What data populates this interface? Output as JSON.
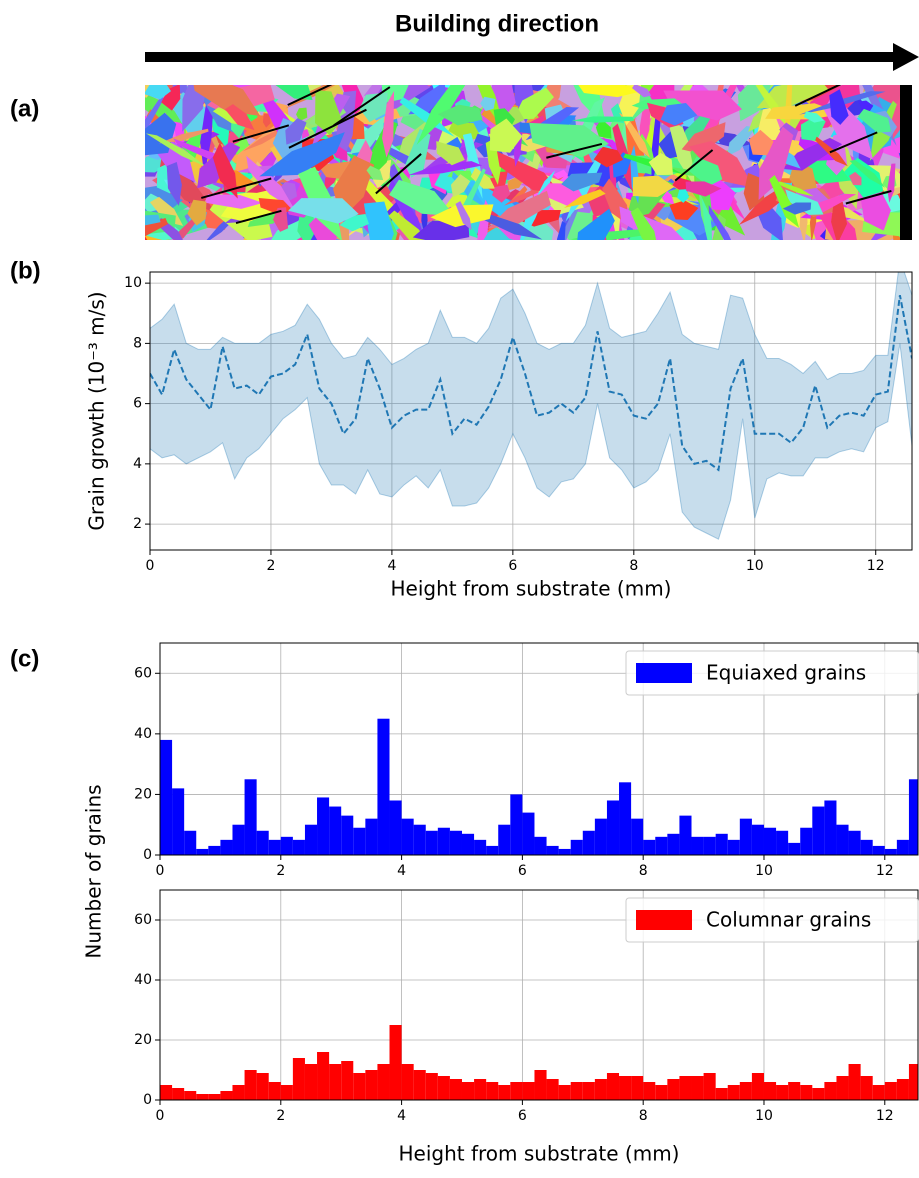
{
  "figure": {
    "arrow_label": "Building direction",
    "panel_labels": [
      "(a)",
      "(b)",
      "(c)"
    ]
  },
  "chart_data": [
    {
      "type": "line",
      "xlabel": "Height from substrate (mm)",
      "ylabel": "Grain growth (10⁻³ m/s)",
      "x": [
        0,
        0.2,
        0.4,
        0.6,
        0.8,
        1.0,
        1.2,
        1.4,
        1.6,
        1.8,
        2.0,
        2.2,
        2.4,
        2.6,
        2.8,
        3.0,
        3.2,
        3.4,
        3.6,
        3.8,
        4.0,
        4.2,
        4.4,
        4.6,
        4.8,
        5.0,
        5.2,
        5.4,
        5.6,
        5.8,
        6.0,
        6.2,
        6.4,
        6.6,
        6.8,
        7.0,
        7.2,
        7.4,
        7.6,
        7.8,
        8.0,
        8.2,
        8.4,
        8.6,
        8.8,
        9.0,
        9.2,
        9.4,
        9.6,
        9.8,
        10.0,
        10.2,
        10.4,
        10.6,
        10.8,
        11.0,
        11.2,
        11.4,
        11.6,
        11.8,
        12.0,
        12.2,
        12.4,
        12.6
      ],
      "series": [
        {
          "color": "#1f77b4",
          "dashed": true,
          "values": [
            7.0,
            6.3,
            7.8,
            6.8,
            6.3,
            5.8,
            7.9,
            6.5,
            6.6,
            6.3,
            6.9,
            7.0,
            7.3,
            8.3,
            6.5,
            6.0,
            5.0,
            5.5,
            7.5,
            6.5,
            5.2,
            5.6,
            5.8,
            5.8,
            6.8,
            5.0,
            5.5,
            5.3,
            5.9,
            6.8,
            8.2,
            7.0,
            5.6,
            5.7,
            6.0,
            5.7,
            6.2,
            8.4,
            6.4,
            6.3,
            5.6,
            5.5,
            6.0,
            7.5,
            4.6,
            4.0,
            4.1,
            3.8,
            6.5,
            7.5,
            5.0,
            5.0,
            5.0,
            4.7,
            5.2,
            6.6,
            5.2,
            5.6,
            5.7,
            5.6,
            6.3,
            6.4,
            9.6,
            7.5
          ]
        }
      ],
      "band": {
        "color": "#1f77b4",
        "opacity": 0.25,
        "upper": [
          8.5,
          8.8,
          9.3,
          8.0,
          7.8,
          7.8,
          8.2,
          8.0,
          8.0,
          8.0,
          8.3,
          8.4,
          8.6,
          9.3,
          8.8,
          8.0,
          7.5,
          7.6,
          8.2,
          7.8,
          7.3,
          7.5,
          7.8,
          8.0,
          9.1,
          8.2,
          8.2,
          8.0,
          8.5,
          9.5,
          9.8,
          9.0,
          8.0,
          7.8,
          8.0,
          8.0,
          8.6,
          10.0,
          8.5,
          8.2,
          8.3,
          8.4,
          9.0,
          9.7,
          8.3,
          8.0,
          7.9,
          7.8,
          9.6,
          9.5,
          8.3,
          7.5,
          7.5,
          7.3,
          7.0,
          7.4,
          6.8,
          7.0,
          7.0,
          7.1,
          7.6,
          7.6,
          10.8,
          9.6
        ],
        "lower": [
          4.5,
          4.2,
          4.3,
          4.0,
          4.2,
          4.4,
          4.7,
          3.5,
          4.2,
          4.5,
          5.0,
          5.5,
          5.8,
          6.2,
          4.0,
          3.3,
          3.3,
          3.0,
          3.8,
          3.0,
          2.9,
          3.3,
          3.6,
          3.2,
          3.8,
          2.6,
          2.6,
          2.7,
          3.2,
          4.0,
          5.0,
          4.2,
          3.2,
          2.9,
          3.4,
          3.5,
          4.0,
          6.0,
          4.2,
          3.8,
          3.2,
          3.4,
          3.8,
          5.0,
          2.4,
          1.9,
          1.7,
          1.5,
          2.8,
          5.5,
          2.2,
          3.5,
          3.7,
          3.6,
          3.6,
          4.2,
          4.2,
          4.4,
          4.5,
          4.4,
          5.2,
          5.4,
          8.0,
          4.6
        ]
      },
      "xlim": [
        0,
        12.6
      ],
      "xticks": [
        0,
        2,
        4,
        6,
        8,
        10,
        12
      ],
      "ylim": [
        1.14,
        10.37
      ],
      "yticks": [
        2,
        4,
        6,
        8,
        10
      ],
      "grid": true
    },
    {
      "type": "histogram",
      "ylabel": "Number of grains",
      "bins": [
        0,
        0.2,
        0.4,
        0.6,
        0.8,
        1.0,
        1.2,
        1.4,
        1.6,
        1.8,
        2.0,
        2.2,
        2.4,
        2.6,
        2.8,
        3.0,
        3.2,
        3.4,
        3.6,
        3.8,
        4.0,
        4.2,
        4.4,
        4.6,
        4.8,
        5.0,
        5.2,
        5.4,
        5.6,
        5.8,
        6.0,
        6.2,
        6.4,
        6.6,
        6.8,
        7.0,
        7.2,
        7.4,
        7.6,
        7.8,
        8.0,
        8.2,
        8.4,
        8.6,
        8.8,
        9.0,
        9.2,
        9.4,
        9.6,
        9.8,
        10.0,
        10.2,
        10.4,
        10.6,
        10.8,
        11.0,
        11.2,
        11.4,
        11.6,
        11.8,
        12.0,
        12.2,
        12.4,
        12.6
      ],
      "series": [
        {
          "name": "Equiaxed grains",
          "color": "#0000ff",
          "values": [
            38,
            22,
            8,
            2,
            3,
            5,
            10,
            25,
            8,
            5,
            6,
            5,
            10,
            19,
            16,
            13,
            9,
            12,
            45,
            18,
            12,
            10,
            8,
            9,
            8,
            7,
            5,
            3,
            10,
            20,
            14,
            6,
            3,
            2,
            5,
            8,
            12,
            18,
            24,
            12,
            5,
            6,
            7,
            13,
            6,
            6,
            7,
            5,
            12,
            10,
            9,
            8,
            4,
            9,
            16,
            18,
            10,
            8,
            5,
            3,
            2,
            5,
            25
          ]
        }
      ],
      "xlim": [
        0,
        12.55
      ],
      "xticks": [
        0,
        2,
        4,
        6,
        8,
        10,
        12
      ],
      "ylim": [
        0,
        70
      ],
      "yticks": [
        0,
        20,
        40,
        60
      ],
      "grid": true,
      "legend": "upper right"
    },
    {
      "type": "histogram",
      "xlabel": "Height from substrate (mm)",
      "bins": [
        0,
        0.2,
        0.4,
        0.6,
        0.8,
        1.0,
        1.2,
        1.4,
        1.6,
        1.8,
        2.0,
        2.2,
        2.4,
        2.6,
        2.8,
        3.0,
        3.2,
        3.4,
        3.6,
        3.8,
        4.0,
        4.2,
        4.4,
        4.6,
        4.8,
        5.0,
        5.2,
        5.4,
        5.6,
        5.8,
        6.0,
        6.2,
        6.4,
        6.6,
        6.8,
        7.0,
        7.2,
        7.4,
        7.6,
        7.8,
        8.0,
        8.2,
        8.4,
        8.6,
        8.8,
        9.0,
        9.2,
        9.4,
        9.6,
        9.8,
        10.0,
        10.2,
        10.4,
        10.6,
        10.8,
        11.0,
        11.2,
        11.4,
        11.6,
        11.8,
        12.0,
        12.2,
        12.4,
        12.6
      ],
      "series": [
        {
          "name": "Columnar grains",
          "color": "#ff0000",
          "values": [
            5,
            4,
            3,
            2,
            2,
            3,
            5,
            10,
            9,
            6,
            5,
            14,
            12,
            16,
            12,
            13,
            9,
            10,
            12,
            25,
            12,
            10,
            9,
            8,
            7,
            6,
            7,
            6,
            5,
            6,
            6,
            10,
            7,
            5,
            6,
            6,
            7,
            9,
            8,
            8,
            6,
            5,
            7,
            8,
            8,
            9,
            4,
            5,
            6,
            9,
            6,
            5,
            6,
            5,
            4,
            6,
            8,
            12,
            8,
            5,
            6,
            7,
            12
          ]
        }
      ],
      "xlim": [
        0,
        12.55
      ],
      "xticks": [
        0,
        2,
        4,
        6,
        8,
        10,
        12
      ],
      "ylim": [
        0,
        70
      ],
      "yticks": [
        0,
        20,
        40,
        60
      ],
      "grid": true,
      "legend": "upper right"
    }
  ]
}
